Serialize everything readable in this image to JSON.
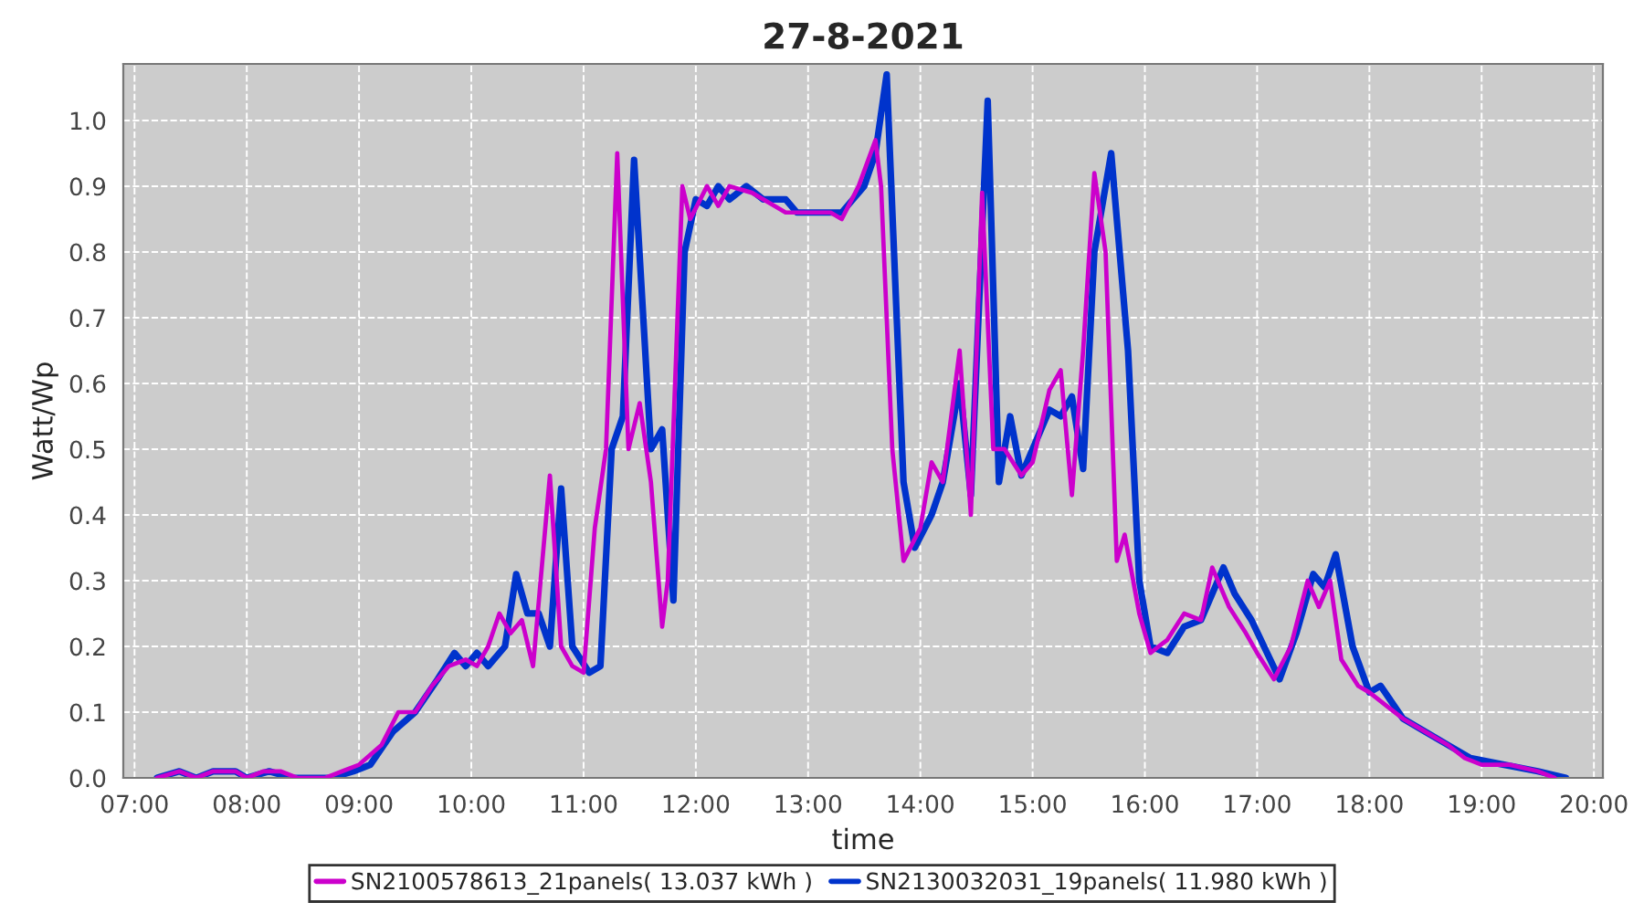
{
  "chart_data": {
    "type": "line",
    "title": "27-8-2021",
    "xlabel": "time",
    "ylabel": "Watt/Wp",
    "xlim": [
      6.9,
      20.08
    ],
    "ylim": [
      0,
      1.086
    ],
    "xticks": [
      {
        "value": 7,
        "label": "07:00"
      },
      {
        "value": 8,
        "label": "08:00"
      },
      {
        "value": 9,
        "label": "09:00"
      },
      {
        "value": 10,
        "label": "10:00"
      },
      {
        "value": 11,
        "label": "11:00"
      },
      {
        "value": 12,
        "label": "12:00"
      },
      {
        "value": 13,
        "label": "13:00"
      },
      {
        "value": 14,
        "label": "14:00"
      },
      {
        "value": 15,
        "label": "15:00"
      },
      {
        "value": 16,
        "label": "16:00"
      },
      {
        "value": 17,
        "label": "17:00"
      },
      {
        "value": 18,
        "label": "18:00"
      },
      {
        "value": 19,
        "label": "19:00"
      },
      {
        "value": 20,
        "label": "20:00"
      }
    ],
    "yticks": [
      {
        "value": 0,
        "label": "0.0"
      },
      0.1,
      0.2,
      0.3,
      0.4,
      0.5,
      0.6,
      0.7,
      0.8,
      0.9,
      {
        "value": 1,
        "label": "1.0"
      }
    ],
    "grid": true,
    "legend": "bottom",
    "line_style": "solid",
    "series": [
      {
        "name": "SN2100578613_21panels( 13.037 kWh )",
        "color": "#cc00cc",
        "x": [
          7.2,
          7.4,
          7.55,
          7.7,
          7.9,
          8.0,
          8.15,
          8.3,
          8.45,
          8.7,
          8.85,
          9.0,
          9.2,
          9.35,
          9.5,
          9.65,
          9.8,
          9.95,
          10.05,
          10.15,
          10.25,
          10.35,
          10.45,
          10.55,
          10.7,
          10.8,
          10.9,
          11.0,
          11.1,
          11.2,
          11.3,
          11.4,
          11.5,
          11.6,
          11.7,
          11.75,
          11.88,
          11.95,
          12.1,
          12.2,
          12.3,
          12.5,
          12.7,
          12.8,
          13.0,
          13.2,
          13.3,
          13.45,
          13.6,
          13.65,
          13.75,
          13.85,
          14.0,
          14.1,
          14.2,
          14.35,
          14.45,
          14.55,
          14.65,
          14.75,
          14.9,
          15.0,
          15.15,
          15.25,
          15.35,
          15.45,
          15.55,
          15.65,
          15.75,
          15.82,
          15.95,
          16.05,
          16.2,
          16.35,
          16.5,
          16.6,
          16.75,
          16.9,
          17.0,
          17.15,
          17.3,
          17.45,
          17.55,
          17.65,
          17.75,
          17.9,
          18.0,
          18.15,
          18.3,
          18.5,
          18.7,
          18.85,
          19.0,
          19.25,
          19.5,
          19.65
        ],
        "values": [
          0.0,
          0.01,
          0.0,
          0.01,
          0.01,
          0.0,
          0.01,
          0.01,
          0.0,
          0.0,
          0.01,
          0.02,
          0.05,
          0.1,
          0.1,
          0.14,
          0.17,
          0.18,
          0.17,
          0.2,
          0.25,
          0.22,
          0.24,
          0.17,
          0.46,
          0.2,
          0.17,
          0.16,
          0.38,
          0.5,
          0.95,
          0.5,
          0.57,
          0.45,
          0.23,
          0.3,
          0.9,
          0.85,
          0.9,
          0.87,
          0.9,
          0.89,
          0.87,
          0.86,
          0.86,
          0.86,
          0.85,
          0.9,
          0.97,
          0.9,
          0.5,
          0.33,
          0.38,
          0.48,
          0.45,
          0.65,
          0.4,
          0.89,
          0.5,
          0.5,
          0.46,
          0.48,
          0.59,
          0.62,
          0.43,
          0.65,
          0.92,
          0.8,
          0.33,
          0.37,
          0.25,
          0.19,
          0.21,
          0.25,
          0.24,
          0.32,
          0.26,
          0.22,
          0.19,
          0.15,
          0.2,
          0.3,
          0.26,
          0.3,
          0.18,
          0.14,
          0.13,
          0.11,
          0.09,
          0.07,
          0.05,
          0.03,
          0.02,
          0.02,
          0.01,
          0.0
        ]
      },
      {
        "name": "SN2130032031_19panels( 11.980 kWh )",
        "color": "#0033cc",
        "x": [
          7.2,
          7.4,
          7.55,
          7.7,
          7.9,
          8.0,
          8.2,
          8.4,
          8.75,
          8.95,
          9.1,
          9.3,
          9.5,
          9.7,
          9.85,
          9.95,
          10.05,
          10.15,
          10.3,
          10.4,
          10.5,
          10.6,
          10.7,
          10.8,
          10.9,
          11.05,
          11.15,
          11.25,
          11.35,
          11.45,
          11.6,
          11.7,
          11.8,
          11.9,
          12.0,
          12.1,
          12.2,
          12.3,
          12.45,
          12.6,
          12.8,
          12.9,
          13.05,
          13.3,
          13.5,
          13.6,
          13.7,
          13.85,
          13.95,
          14.1,
          14.2,
          14.35,
          14.45,
          14.6,
          14.7,
          14.8,
          14.9,
          15.0,
          15.15,
          15.25,
          15.35,
          15.45,
          15.55,
          15.7,
          15.85,
          15.95,
          16.05,
          16.2,
          16.35,
          16.5,
          16.7,
          16.8,
          16.95,
          17.2,
          17.35,
          17.5,
          17.6,
          17.7,
          17.85,
          18.0,
          18.1,
          18.3,
          18.5,
          18.7,
          18.9,
          19.2,
          19.5,
          19.75
        ],
        "values": [
          0.0,
          0.01,
          0.0,
          0.01,
          0.01,
          0.0,
          0.01,
          0.0,
          0.0,
          0.01,
          0.02,
          0.07,
          0.1,
          0.15,
          0.19,
          0.17,
          0.19,
          0.17,
          0.2,
          0.31,
          0.25,
          0.25,
          0.2,
          0.44,
          0.2,
          0.16,
          0.17,
          0.5,
          0.55,
          0.94,
          0.5,
          0.53,
          0.27,
          0.8,
          0.88,
          0.87,
          0.9,
          0.88,
          0.9,
          0.88,
          0.88,
          0.86,
          0.86,
          0.86,
          0.9,
          0.95,
          1.07,
          0.45,
          0.35,
          0.4,
          0.45,
          0.6,
          0.43,
          1.03,
          0.45,
          0.55,
          0.46,
          0.5,
          0.56,
          0.55,
          0.58,
          0.47,
          0.8,
          0.95,
          0.65,
          0.3,
          0.2,
          0.19,
          0.23,
          0.24,
          0.32,
          0.28,
          0.24,
          0.15,
          0.22,
          0.31,
          0.29,
          0.34,
          0.2,
          0.13,
          0.14,
          0.09,
          0.07,
          0.05,
          0.03,
          0.02,
          0.01,
          0.0
        ]
      }
    ]
  }
}
